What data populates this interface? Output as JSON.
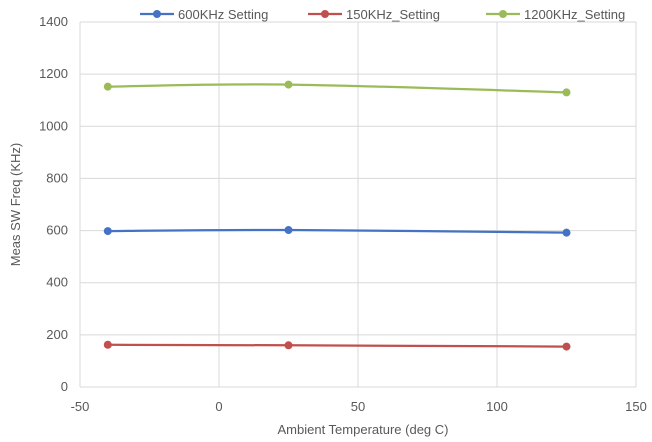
{
  "chart_data": {
    "type": "line",
    "title": "",
    "xlabel": "Ambient Temperature (deg C)",
    "ylabel": "Meas SW Freq (KHz)",
    "xlim": [
      -50,
      150
    ],
    "ylim": [
      0,
      1400
    ],
    "x_ticks": [
      -50,
      0,
      50,
      100,
      150
    ],
    "y_ticks": [
      0,
      200,
      400,
      600,
      800,
      1000,
      1200,
      1400
    ],
    "grid": true,
    "legend_position": "top",
    "series": [
      {
        "name": "600KHz Setting",
        "color": "#4472C4",
        "x": [
          -40,
          25,
          125
        ],
        "y": [
          598,
          602,
          592
        ]
      },
      {
        "name": "150KHz_Setting",
        "color": "#C0504D",
        "x": [
          -40,
          25,
          125
        ],
        "y": [
          162,
          160,
          155
        ]
      },
      {
        "name": "1200KHz_Setting",
        "color": "#9BBB59",
        "x": [
          -40,
          25,
          125
        ],
        "y": [
          1152,
          1160,
          1130
        ]
      }
    ]
  }
}
